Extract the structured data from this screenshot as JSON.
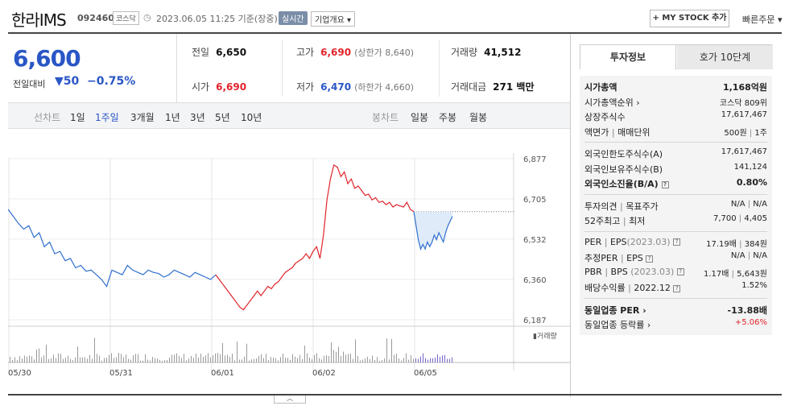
{
  "header": {
    "name": "한라IMS",
    "code": "092460",
    "market": "코스닥",
    "clock_icon": "clock-icon",
    "datetime": "2023.06.05 11:25 기준(장중)",
    "live_badge": "실시간",
    "corp_overview": "기업개요 ▾",
    "mystock": "+ MY STOCK 추가",
    "quick_order": "빠른주문 ▾"
  },
  "price": {
    "current": "6,600",
    "prev_label": "전일대비",
    "change": "▼50",
    "percent": "−0.75%"
  },
  "summary": {
    "prev_label": "전일",
    "prev": "6,650",
    "high_label": "고가",
    "high": "6,690",
    "upper_label": "(상한가 8,640)",
    "volume_label": "거래량",
    "volume": "41,512",
    "open_label": "시가",
    "open": "6,690",
    "low_label": "저가",
    "low": "6,470",
    "lower_label": "(하한가 4,660)",
    "amount_label": "거래대금",
    "amount": "271 백만"
  },
  "tabs": {
    "line_label": "선차트",
    "line": [
      "1일",
      "1주일",
      "3개월",
      "1년",
      "3년",
      "5년",
      "10년"
    ],
    "active": "1주일",
    "candle_label": "봉차트",
    "candle": [
      "일봉",
      "주봉",
      "월봉"
    ]
  },
  "chart_data": {
    "type": "line",
    "y_ticks": [
      "6,877",
      "6,705",
      "6,532",
      "6,360",
      "6,187"
    ],
    "x_ticks": [
      "05/30",
      "05/31",
      "06/01",
      "06/02",
      "06/05"
    ],
    "volume_label": "▮거래량",
    "ylim": [
      6187,
      6877
    ],
    "prev_close": 6650,
    "series": [
      {
        "values": [
          6660,
          6630,
          6600,
          6575,
          6590,
          6540,
          6560,
          6500,
          6520,
          6470,
          6480,
          6440,
          6450,
          6410,
          6420,
          6395,
          6400,
          6380,
          6360,
          6330,
          6400,
          6390,
          6380,
          6420,
          6400,
          6390,
          6380,
          6400,
          6390,
          6385,
          6370,
          6380,
          6400,
          6390,
          6380,
          6370,
          6390,
          6380,
          6370,
          6360,
          6380
        ]
      },
      {
        "values": [
          6380,
          6360,
          6340,
          6320,
          6300,
          6280,
          6260,
          6240,
          6230,
          6250,
          6270,
          6290,
          6310,
          6290,
          6310,
          6330,
          6320,
          6340,
          6350,
          6370,
          6390,
          6400,
          6410,
          6430,
          6440,
          6450,
          6470,
          6450,
          6480,
          6500,
          6450,
          6550,
          6700,
          6790,
          6850,
          6840,
          6800,
          6820,
          6770,
          6790,
          6750,
          6760,
          6740,
          6720,
          6725,
          6700,
          6710,
          6690,
          6695,
          6680,
          6690,
          6670,
          6680,
          6675,
          6670,
          6690,
          6660,
          6650
        ]
      },
      {
        "values": [
          6650,
          6590,
          6530,
          6490,
          6510,
          6490,
          6520,
          6500,
          6520,
          6550,
          6530,
          6560,
          6540,
          6520,
          6560,
          6590,
          6610,
          6630
        ]
      }
    ]
  }
}
